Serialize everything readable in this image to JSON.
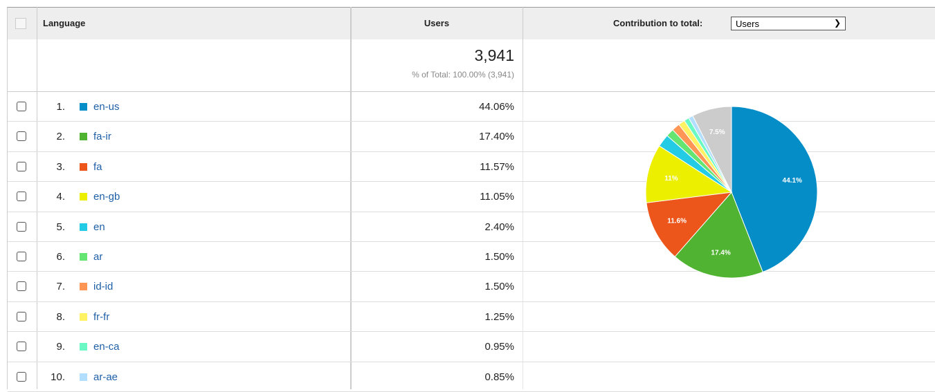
{
  "header": {
    "language": "Language",
    "users": "Users",
    "contribution": "Contribution to total:",
    "select": "Users"
  },
  "totals": {
    "users": "3,941",
    "percent": "% of Total: 100.00% (3,941)"
  },
  "table": {
    "rows": [
      [
        "1.",
        "en-us",
        "44.06%"
      ],
      [
        "2.",
        "fa-ir",
        "17.40%"
      ],
      [
        "3.",
        "fa",
        "11.57%"
      ],
      [
        "4.",
        "en-gb",
        "11.05%"
      ],
      [
        "5.",
        "en",
        "2.40%"
      ],
      [
        "6.",
        "ar",
        "1.50%"
      ],
      [
        "7.",
        "id-id",
        "1.50%"
      ],
      [
        "8.",
        "fr-fr",
        "1.25%"
      ],
      [
        "9.",
        "en-ca",
        "0.95%"
      ],
      [
        "10.",
        "ar-ae",
        "0.85%"
      ]
    ]
  },
  "chart_data": {
    "type": "pie",
    "values": [
      44.06,
      17.4,
      11.57,
      11.05,
      2.4,
      1.5,
      1.5,
      1.25,
      0.95,
      0.85,
      7.47
    ],
    "value_labels": [
      "44.1%",
      "17.4%",
      "11.6%",
      "11%",
      null,
      null,
      null,
      null,
      null,
      null,
      "7.5%"
    ],
    "colors": [
      "#058dc7",
      "#50b432",
      "#ed561b",
      "#edef00",
      "#24cbe5",
      "#64e572",
      "#ff9655",
      "#fff263",
      "#6af9c4",
      "#b2deff",
      "#cccccc"
    ]
  }
}
